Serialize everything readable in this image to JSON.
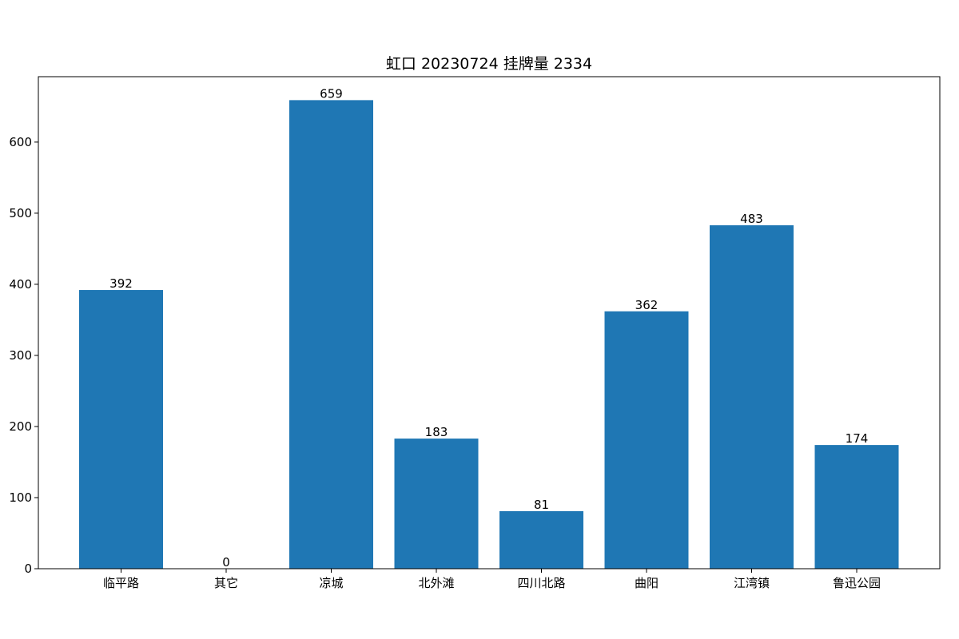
{
  "chart_data": {
    "type": "bar",
    "title": "虹口 20230724 挂牌量 2334",
    "xlabel": "",
    "ylabel": "",
    "categories": [
      "临平路",
      "其它",
      "凉城",
      "北外滩",
      "四川北路",
      "曲阳",
      "江湾镇",
      "鲁迅公园"
    ],
    "values": [
      392,
      0,
      659,
      183,
      81,
      362,
      483,
      174
    ],
    "ylim": [
      0,
      692
    ],
    "yticks": [
      0,
      100,
      200,
      300,
      400,
      500,
      600
    ],
    "grid": false,
    "legend": "none",
    "bar_color": "#1f77b4"
  }
}
